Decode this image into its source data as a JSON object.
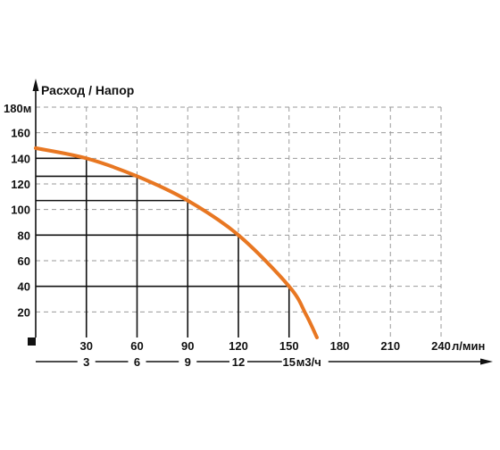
{
  "chart_data": {
    "type": "line",
    "title": "Расход / Напор",
    "xlabel": "л/мин",
    "x2label": "м3/ч",
    "y_top_label": "180м",
    "x_ticks": [
      30,
      60,
      90,
      120,
      150,
      180,
      210
    ],
    "x_end_label": "240",
    "x2_ticks": [
      3,
      6,
      9,
      12
    ],
    "x2_end_label": "15",
    "y_ticks": [
      20,
      40,
      60,
      80,
      100,
      120,
      140,
      160
    ],
    "xlim": [
      0,
      240
    ],
    "ylim": [
      0,
      180
    ],
    "grid": true,
    "series": [
      {
        "color": "#E87722",
        "x": [
          0,
          30,
          60,
          90,
          120,
          150,
          160,
          166.5
        ],
        "y": [
          148,
          140,
          126,
          107,
          80,
          40,
          18,
          0
        ]
      }
    ],
    "highlights": [
      {
        "x": 30,
        "y": 140
      },
      {
        "x": 60,
        "y": 126
      },
      {
        "x": 90,
        "y": 107
      },
      {
        "x": 120,
        "y": 80
      },
      {
        "x": 150,
        "y": 40
      }
    ]
  }
}
